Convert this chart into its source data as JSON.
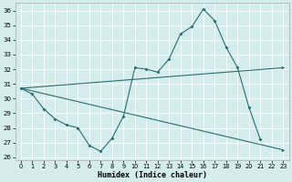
{
  "xlabel": "Humidex (Indice chaleur)",
  "x": [
    0,
    1,
    2,
    3,
    4,
    5,
    6,
    7,
    8,
    9,
    10,
    11,
    12,
    13,
    14,
    15,
    16,
    17,
    18,
    19,
    20,
    21,
    22,
    23
  ],
  "line1": [
    30.7,
    30.3,
    29.3,
    28.6,
    28.2,
    28.0,
    26.8,
    26.4,
    27.3,
    28.8,
    32.1,
    32.0,
    31.8,
    32.7,
    34.4,
    34.9,
    36.1,
    35.3,
    33.5,
    32.1,
    29.4,
    27.2,
    null,
    null
  ],
  "line2_x": [
    0,
    23
  ],
  "line2_y": [
    30.7,
    26.5
  ],
  "line3_x": [
    0,
    23
  ],
  "line3_y": [
    30.7,
    32.1
  ],
  "bg_color": "#d5eced",
  "grid_color": "#ffffff",
  "line_color": "#2a6e6e",
  "ylim": [
    25.8,
    36.5
  ],
  "yticks": [
    26,
    27,
    28,
    29,
    30,
    31,
    32,
    33,
    34,
    35,
    36
  ],
  "xlim": [
    -0.5,
    23.5
  ],
  "xticks": [
    0,
    1,
    2,
    3,
    4,
    5,
    6,
    7,
    8,
    9,
    10,
    11,
    12,
    13,
    14,
    15,
    16,
    17,
    18,
    19,
    20,
    21,
    22,
    23
  ]
}
